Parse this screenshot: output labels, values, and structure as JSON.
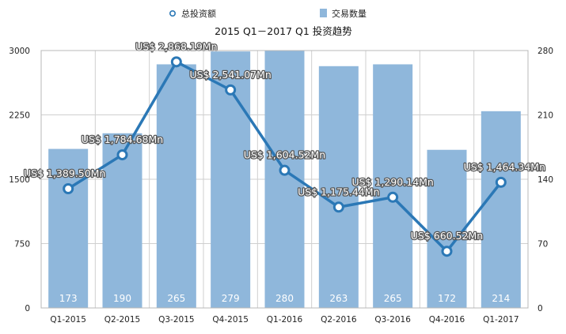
{
  "chart_data": {
    "type": "bar+line",
    "title": "2015 Q1－2017 Q1 投资趋势",
    "categories": [
      "Q1-2015",
      "Q2-2015",
      "Q3-2015",
      "Q4-2015",
      "Q1-2016",
      "Q2-2016",
      "Q3-2016",
      "Q4-2016",
      "Q1-2017"
    ],
    "legend": {
      "placement": "top-center"
    },
    "series": [
      {
        "name": "总投资额",
        "kind": "line",
        "axis": "left",
        "color": "#2B78B6",
        "values": [
          1389.5,
          1784.68,
          2868.19,
          2541.07,
          1604.52,
          1175.44,
          1290.14,
          660.52,
          1464.34
        ],
        "labels": [
          "US$ 1,389.50Mn",
          "US$ 1,784.68Mn",
          "US$ 2,868.19Mn",
          "US$ 2,541.07Mn",
          "US$ 1,604.52Mn",
          "US$ 1,175.44Mn",
          "US$ 1,290.14Mn",
          "US$ 660.52Mn",
          "US$ 1,464.34Mn"
        ]
      },
      {
        "name": "交易数量",
        "kind": "bar",
        "axis": "right",
        "color": "#8FB7DB",
        "values": [
          173,
          190,
          265,
          279,
          280,
          263,
          265,
          172,
          214
        ],
        "labels": [
          "173",
          "190",
          "265",
          "279",
          "280",
          "263",
          "265",
          "172",
          "214"
        ]
      }
    ],
    "y_left": {
      "min": 0,
      "max": 3000,
      "ticks": [
        "0",
        "750",
        "1500",
        "2250",
        "3000"
      ]
    },
    "y_right": {
      "min": 0,
      "max": 280,
      "ticks": [
        "0",
        "70",
        "140",
        "210",
        "280"
      ]
    },
    "grid": true
  }
}
